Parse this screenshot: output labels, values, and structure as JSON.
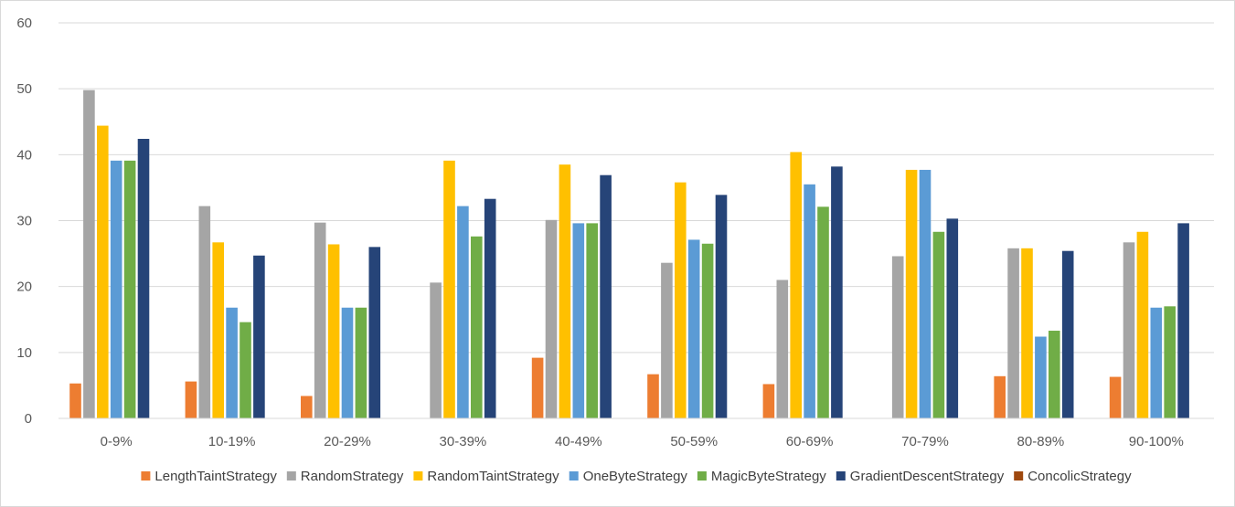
{
  "chart_data": {
    "type": "bar",
    "title": "",
    "xlabel": "",
    "ylabel": "",
    "ylim": [
      0,
      60
    ],
    "yticks": [
      0,
      10,
      20,
      30,
      40,
      50,
      60
    ],
    "grid": true,
    "legend_position": "bottom",
    "categories": [
      "0-9%",
      "10-19%",
      "20-29%",
      "30-39%",
      "40-49%",
      "50-59%",
      "60-69%",
      "70-79%",
      "80-89%",
      "90-100%"
    ],
    "series": [
      {
        "name": "LengthTaintStrategy",
        "color": "#ed7d31",
        "values": [
          5.3,
          5.6,
          3.4,
          0,
          9.2,
          6.7,
          5.2,
          0,
          6.4,
          6.3
        ]
      },
      {
        "name": "RandomStrategy",
        "color": "#a5a5a5",
        "values": [
          49.8,
          32.2,
          29.7,
          20.6,
          30.1,
          23.6,
          21.0,
          24.6,
          25.8,
          26.7
        ]
      },
      {
        "name": "RandomTaintStrategy",
        "color": "#ffc000",
        "values": [
          44.4,
          26.7,
          26.4,
          39.1,
          38.5,
          35.8,
          40.4,
          37.7,
          25.8,
          28.3
        ]
      },
      {
        "name": "OneByteStrategy",
        "color": "#5b9bd5",
        "values": [
          39.1,
          16.8,
          16.8,
          32.2,
          29.6,
          27.1,
          35.5,
          37.7,
          12.4,
          16.8
        ]
      },
      {
        "name": "MagicByteStrategy",
        "color": "#70ad47",
        "values": [
          39.1,
          14.6,
          16.8,
          27.6,
          29.6,
          26.5,
          32.1,
          28.3,
          13.3,
          17.0
        ]
      },
      {
        "name": "GradientDescentStrategy",
        "color": "#264478",
        "values": [
          42.4,
          24.7,
          26.0,
          33.3,
          36.9,
          33.9,
          38.2,
          30.3,
          25.4,
          29.6
        ]
      },
      {
        "name": "ConcolicStrategy",
        "color": "#9e480e",
        "values": [
          0,
          0,
          0,
          0,
          0,
          0,
          0,
          0,
          0,
          0
        ]
      }
    ]
  }
}
